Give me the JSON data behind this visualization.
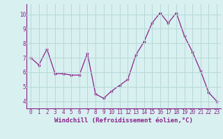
{
  "hours": [
    0,
    1,
    2,
    3,
    4,
    5,
    6,
    7,
    8,
    9,
    10,
    11,
    12,
    13,
    14,
    15,
    16,
    17,
    18,
    19,
    20,
    21,
    22,
    23
  ],
  "values": [
    7.0,
    6.5,
    7.6,
    5.9,
    5.9,
    5.8,
    5.8,
    7.3,
    4.5,
    4.2,
    4.7,
    5.1,
    5.5,
    7.2,
    8.1,
    9.4,
    10.1,
    9.4,
    10.1,
    8.5,
    7.4,
    6.1,
    4.6,
    4.0
  ],
  "line_color": "#882288",
  "marker": "*",
  "marker_size": 3,
  "bg_color": "#d8f0f0",
  "grid_color": "#b8d8d8",
  "xlabel": "Windchill (Refroidissement éolien,°C)",
  "ylim": [
    3.5,
    10.7
  ],
  "yticks": [
    4,
    5,
    6,
    7,
    8,
    9,
    10
  ],
  "xticks": [
    0,
    1,
    2,
    3,
    4,
    5,
    6,
    7,
    8,
    9,
    10,
    11,
    12,
    13,
    14,
    15,
    16,
    17,
    18,
    19,
    20,
    21,
    22,
    23
  ],
  "tick_label_size": 5.5,
  "xlabel_size": 6.5
}
